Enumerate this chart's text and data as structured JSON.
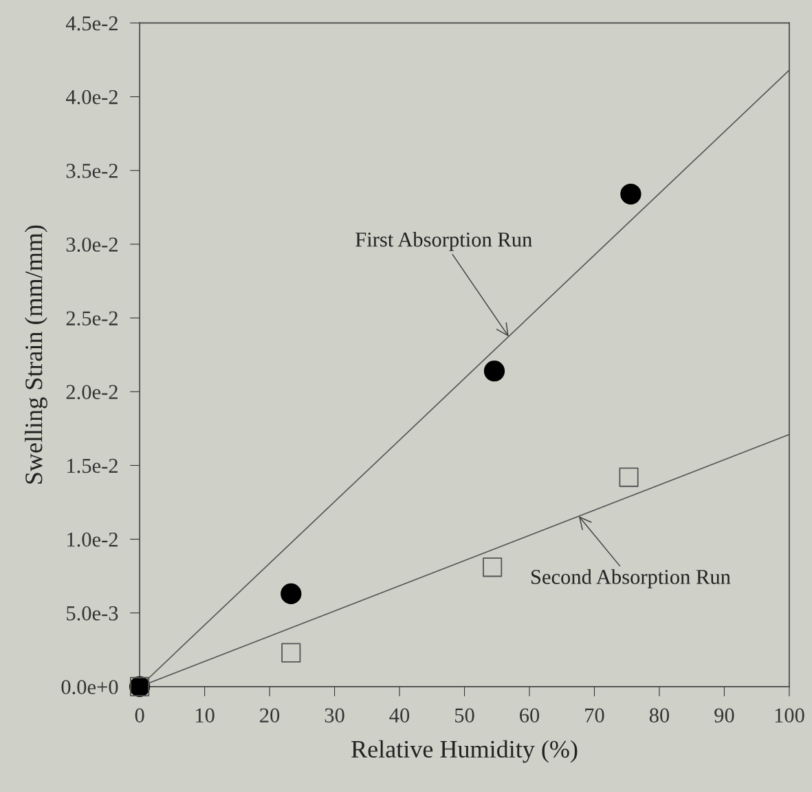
{
  "chart_data": {
    "type": "scatter",
    "xlabel": "Relative Humidity (%)",
    "ylabel": "Swelling Strain (mm/mm)",
    "xlim": [
      0,
      100
    ],
    "ylim": [
      0,
      0.045
    ],
    "xticks": [
      0,
      10,
      20,
      30,
      40,
      50,
      60,
      70,
      80,
      90,
      100
    ],
    "yticks": [
      {
        "value": 0,
        "label": "0.0e+0"
      },
      {
        "value": 0.005,
        "label": "5.0e-3"
      },
      {
        "value": 0.01,
        "label": "1.0e-2"
      },
      {
        "value": 0.015,
        "label": "1.5e-2"
      },
      {
        "value": 0.02,
        "label": "2.0e-2"
      },
      {
        "value": 0.025,
        "label": "2.5e-2"
      },
      {
        "value": 0.03,
        "label": "3.0e-2"
      },
      {
        "value": 0.035,
        "label": "3.5e-2"
      },
      {
        "value": 0.04,
        "label": "4.0e-2"
      },
      {
        "value": 0.045,
        "label": "4.5e-2"
      }
    ],
    "grid": false,
    "series": [
      {
        "marker": "circle",
        "color": "#000000",
        "x": [
          0,
          23.3,
          54.6,
          75.6
        ],
        "values": [
          0,
          0.0063,
          0.0214,
          0.0334
        ]
      },
      {
        "marker": "square",
        "color": "#555555",
        "x": [
          0,
          23.3,
          54.3,
          75.3
        ],
        "values": [
          0,
          0.0023,
          0.0081,
          0.0142
        ]
      },
      {
        "type": "line",
        "marker": "none",
        "color": "#555555",
        "x": [
          0,
          100
        ],
        "values": [
          0,
          0.0418
        ]
      },
      {
        "type": "line",
        "marker": "none",
        "color": "#555555",
        "x": [
          0,
          100
        ],
        "values": [
          0,
          0.0171
        ]
      }
    ],
    "annotations": [
      {
        "text": "First Absorption Run",
        "x": 56.8,
        "y": 0.02374
      },
      {
        "text": "Second Absorption Run",
        "x": 67.6,
        "y": 0.01156
      }
    ]
  }
}
